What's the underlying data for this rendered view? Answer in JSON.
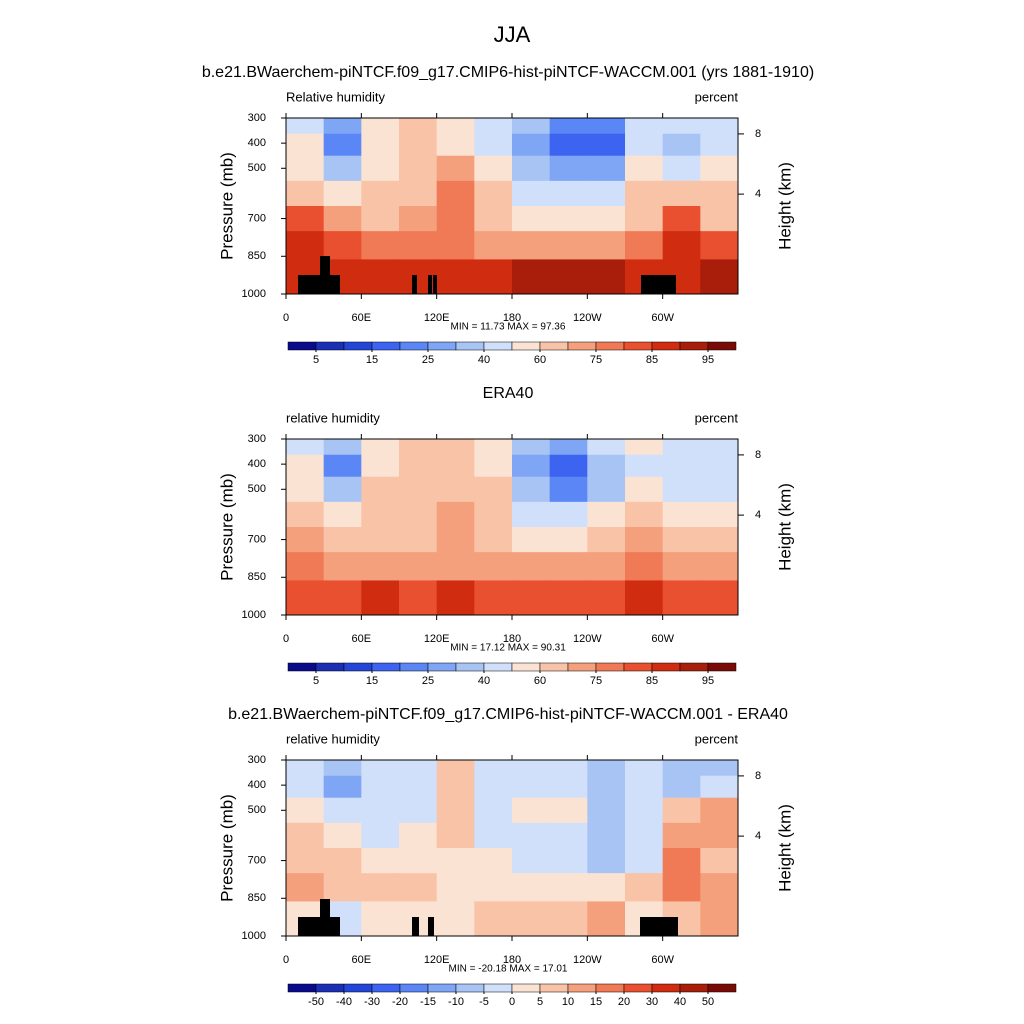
{
  "title": "JJA",
  "chart_data": [
    {
      "type": "contour",
      "title": "b.e21.BWaerchem-piNTCF.f09_g17.CMIP6-hist-piNTCF-WACCM.001 (yrs 1881-1910)",
      "left_label": "Relative humidity",
      "right_label": "percent",
      "ylabel": "Pressure (mb)",
      "y2label": "Height (km)",
      "stats": "MIN =  11.73  MAX =  97.36",
      "xlim": [
        0,
        360
      ],
      "xticks": [
        0,
        {
          "value": 60,
          "label": "60E"
        },
        {
          "value": 120,
          "label": "120E"
        },
        180,
        {
          "value": 240,
          "label": "120W"
        },
        {
          "value": 300,
          "label": "60W"
        }
      ],
      "ylim": [
        1000,
        300
      ],
      "yticks": [
        300,
        400,
        500,
        700,
        850,
        1000
      ],
      "y2ticks": [
        4,
        8
      ],
      "x": [
        15,
        45,
        75,
        105,
        135,
        165,
        195,
        225,
        255,
        285,
        315,
        345
      ],
      "p": [
        325,
        400,
        500,
        600,
        700,
        800,
        925
      ],
      "values": [
        [
          45,
          25,
          50,
          60,
          55,
          45,
          30,
          20,
          20,
          45,
          40,
          40
        ],
        [
          50,
          20,
          50,
          60,
          55,
          40,
          25,
          15,
          15,
          40,
          35,
          45
        ],
        [
          55,
          35,
          55,
          60,
          70,
          50,
          35,
          25,
          25,
          50,
          45,
          55
        ],
        [
          65,
          55,
          60,
          65,
          75,
          60,
          45,
          40,
          40,
          60,
          65,
          60
        ],
        [
          80,
          70,
          60,
          70,
          75,
          65,
          55,
          50,
          50,
          65,
          80,
          65
        ],
        [
          85,
          80,
          75,
          75,
          75,
          72,
          70,
          70,
          72,
          75,
          85,
          80
        ],
        [
          85,
          85,
          88,
          88,
          88,
          88,
          90,
          90,
          92,
          88,
          85,
          92
        ]
      ],
      "levels": [
        5,
        10,
        15,
        20,
        25,
        30,
        40,
        50,
        60,
        70,
        75,
        80,
        85,
        90,
        95
      ],
      "colorbar_ticks": [
        5,
        15,
        25,
        40,
        60,
        75,
        85,
        95
      ],
      "colors": [
        "#0a0a8c",
        "#1a2fb4",
        "#2446d8",
        "#3c64f0",
        "#5a87f5",
        "#7fa6f5",
        "#a8c4f5",
        "#d0e0fa",
        "#fbe3d3",
        "#f9c3a8",
        "#f5a07c",
        "#f07a55",
        "#e85030",
        "#d02c10",
        "#a81e0a",
        "#7a0a05"
      ]
    },
    {
      "type": "contour",
      "title": "ERA40",
      "left_label": "relative humidity",
      "right_label": "percent",
      "ylabel": "Pressure (mb)",
      "y2label": "Height (km)",
      "stats": "MIN =  17.12  MAX =  90.31",
      "xlim": [
        0,
        360
      ],
      "xticks": [
        0,
        {
          "value": 60,
          "label": "60E"
        },
        {
          "value": 120,
          "label": "120E"
        },
        180,
        {
          "value": 240,
          "label": "120W"
        },
        {
          "value": 300,
          "label": "60W"
        }
      ],
      "ylim": [
        1000,
        300
      ],
      "yticks": [
        300,
        400,
        500,
        700,
        850,
        1000
      ],
      "y2ticks": [
        4,
        8
      ],
      "x": [
        15,
        45,
        75,
        105,
        135,
        165,
        195,
        225,
        255,
        285,
        315,
        345
      ],
      "p": [
        325,
        400,
        500,
        600,
        700,
        800,
        925
      ],
      "values": [
        [
          45,
          30,
          55,
          60,
          60,
          55,
          30,
          25,
          40,
          50,
          40,
          45
        ],
        [
          50,
          20,
          55,
          60,
          60,
          55,
          25,
          15,
          30,
          45,
          40,
          45
        ],
        [
          55,
          30,
          60,
          62,
          65,
          60,
          30,
          20,
          35,
          50,
          40,
          40
        ],
        [
          60,
          50,
          60,
          62,
          70,
          62,
          45,
          40,
          50,
          60,
          50,
          50
        ],
        [
          70,
          65,
          62,
          62,
          70,
          62,
          55,
          55,
          60,
          70,
          62,
          60
        ],
        [
          75,
          72,
          70,
          70,
          72,
          70,
          70,
          70,
          72,
          75,
          72,
          72
        ],
        [
          82,
          82,
          85,
          82,
          85,
          82,
          80,
          80,
          82,
          85,
          80,
          82
        ]
      ],
      "levels": [
        5,
        10,
        15,
        20,
        25,
        30,
        40,
        50,
        60,
        70,
        75,
        80,
        85,
        90,
        95
      ],
      "colorbar_ticks": [
        5,
        15,
        25,
        40,
        60,
        75,
        85,
        95
      ],
      "colors": [
        "#0a0a8c",
        "#1a2fb4",
        "#2446d8",
        "#3c64f0",
        "#5a87f5",
        "#7fa6f5",
        "#a8c4f5",
        "#d0e0fa",
        "#fbe3d3",
        "#f9c3a8",
        "#f5a07c",
        "#f07a55",
        "#e85030",
        "#d02c10",
        "#a81e0a",
        "#7a0a05"
      ]
    },
    {
      "type": "contour",
      "title": "b.e21.BWaerchem-piNTCF.f09_g17.CMIP6-hist-piNTCF-WACCM.001 - ERA40",
      "left_label": "relative humidity",
      "right_label": "percent",
      "ylabel": "Pressure (mb)",
      "y2label": "Height (km)",
      "stats": "MIN = -20.18  MAX =  17.01",
      "xlim": [
        0,
        360
      ],
      "xticks": [
        0,
        {
          "value": 60,
          "label": "60E"
        },
        {
          "value": 120,
          "label": "120E"
        },
        180,
        {
          "value": 240,
          "label": "120W"
        },
        {
          "value": 300,
          "label": "60W"
        }
      ],
      "ylim": [
        1000,
        300
      ],
      "yticks": [
        300,
        400,
        500,
        700,
        850,
        1000
      ],
      "y2ticks": [
        4,
        8
      ],
      "x": [
        15,
        45,
        75,
        105,
        135,
        165,
        195,
        225,
        255,
        285,
        315,
        345
      ],
      "p": [
        325,
        400,
        500,
        600,
        700,
        800,
        925
      ],
      "values": [
        [
          -5,
          -10,
          -5,
          -5,
          5,
          -5,
          -5,
          -5,
          -10,
          -5,
          -10,
          -10
        ],
        [
          -3,
          -15,
          -5,
          -3,
          5,
          -3,
          -3,
          -3,
          -10,
          -5,
          -10,
          -5
        ],
        [
          2,
          -5,
          -5,
          -5,
          5,
          -5,
          2,
          2,
          -10,
          -3,
          5,
          10
        ],
        [
          5,
          3,
          -3,
          3,
          5,
          -3,
          -3,
          -3,
          -10,
          -3,
          10,
          12
        ],
        [
          8,
          5,
          3,
          3,
          3,
          3,
          -3,
          -3,
          -8,
          -5,
          15,
          5
        ],
        [
          10,
          5,
          5,
          5,
          3,
          3,
          3,
          3,
          2,
          5,
          15,
          10
        ],
        [
          3,
          -5,
          3,
          3,
          3,
          5,
          8,
          8,
          10,
          2,
          5,
          10
        ]
      ],
      "levels": [
        -50,
        -40,
        -30,
        -20,
        -15,
        -10,
        -5,
        0,
        5,
        10,
        15,
        20,
        30,
        40,
        50
      ],
      "colorbar_ticks": [
        -50,
        -40,
        -30,
        -20,
        -15,
        -10,
        -5,
        0,
        5,
        10,
        15,
        20,
        30,
        40,
        50
      ],
      "colors": [
        "#0a0a8c",
        "#1a2fb4",
        "#2446d8",
        "#3c64f0",
        "#5a87f5",
        "#7fa6f5",
        "#a8c4f5",
        "#d0e0fa",
        "#fbe3d3",
        "#f9c3a8",
        "#f5a07c",
        "#f07a55",
        "#e85030",
        "#d02c10",
        "#a81e0a",
        "#7a0a05"
      ]
    }
  ]
}
